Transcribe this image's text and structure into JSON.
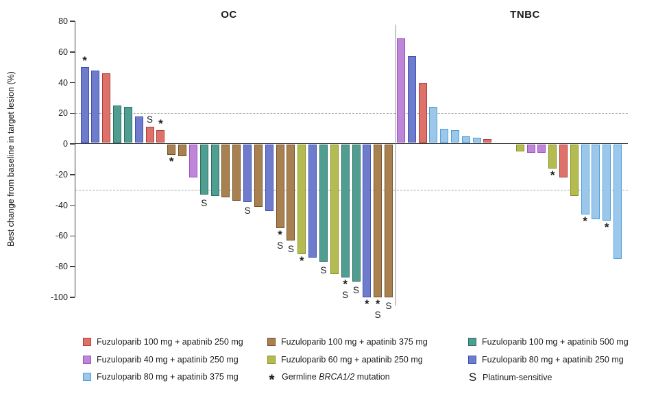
{
  "chart_data": {
    "type": "bar",
    "ylabel": "Best change from baseline in target lesion (%)",
    "ylim": [
      -100,
      80
    ],
    "yticks": [
      80,
      60,
      40,
      20,
      0,
      -20,
      -40,
      -60,
      -80,
      -100
    ],
    "reference_lines": [
      20,
      -30
    ],
    "grid": false,
    "legend_position": "bottom",
    "groups": {
      "fz100_ap250": {
        "label": "Fuzuloparib 100 mg + apatinib 250 mg",
        "fill": "#DE726B",
        "border": "#AA3F39"
      },
      "fz100_ap375": {
        "label": "Fuzuloparib 100 mg + apatinib 375 mg",
        "fill": "#A9804F",
        "border": "#6F5026"
      },
      "fz100_ap500": {
        "label": "Fuzuloparib 100 mg + apatinib 500 mg",
        "fill": "#4F9E91",
        "border": "#2B7165"
      },
      "fz40_ap250": {
        "label": "Fuzuloparib 40 mg + apatinib 250 mg",
        "fill": "#BE85D8",
        "border": "#9852BD"
      },
      "fz60_ap250": {
        "label": "Fuzuloparib 60 mg + apatinib 250 mg",
        "fill": "#B4BB51",
        "border": "#899120"
      },
      "fz80_ap250": {
        "label": "Fuzuloparib 80 mg + apatinib 250 mg",
        "fill": "#6F7CCB",
        "border": "#3C50B9"
      },
      "fz80_ap375": {
        "label": "Fuzuloparib 80 mg + apatinib 375 mg",
        "fill": "#9BC7EB",
        "border": "#4C9EDA"
      }
    },
    "markers": {
      "brca": {
        "symbol": "*"
      },
      "platinum": {
        "symbol": "S"
      }
    },
    "panels": [
      {
        "title": "OC",
        "bars": [
          {
            "v": 50,
            "g": "fz80_ap250",
            "m": [
              "brca"
            ]
          },
          {
            "v": 48,
            "g": "fz80_ap250"
          },
          {
            "v": 46,
            "g": "fz100_ap250"
          },
          {
            "v": 25,
            "g": "fz100_ap500"
          },
          {
            "v": 24,
            "g": "fz100_ap500"
          },
          {
            "v": 18,
            "g": "fz80_ap250"
          },
          {
            "v": 11,
            "g": "fz100_ap250",
            "m": [
              "platinum"
            ]
          },
          {
            "v": 9,
            "g": "fz100_ap250",
            "m": [
              "brca"
            ]
          },
          {
            "v": -7,
            "g": "fz100_ap375",
            "m": [
              "brca"
            ]
          },
          {
            "v": -8,
            "g": "fz100_ap375"
          },
          {
            "v": -22,
            "g": "fz40_ap250"
          },
          {
            "v": -33,
            "g": "fz100_ap500",
            "m": [
              "platinum"
            ]
          },
          {
            "v": -34,
            "g": "fz100_ap500"
          },
          {
            "v": -35,
            "g": "fz100_ap375"
          },
          {
            "v": -37,
            "g": "fz100_ap375"
          },
          {
            "v": -38,
            "g": "fz80_ap250",
            "m": [
              "platinum"
            ]
          },
          {
            "v": -41,
            "g": "fz100_ap375"
          },
          {
            "v": -44,
            "g": "fz80_ap250"
          },
          {
            "v": -55,
            "g": "fz100_ap375",
            "m": [
              "brca",
              "platinum"
            ]
          },
          {
            "v": -63,
            "g": "fz100_ap375",
            "m": [
              "platinum"
            ]
          },
          {
            "v": -72,
            "g": "fz60_ap250",
            "m": [
              "brca"
            ]
          },
          {
            "v": -74,
            "g": "fz80_ap250"
          },
          {
            "v": -77,
            "g": "fz100_ap500",
            "m": [
              "platinum"
            ]
          },
          {
            "v": -85,
            "g": "fz60_ap250"
          },
          {
            "v": -87,
            "g": "fz100_ap500",
            "m": [
              "brca",
              "platinum"
            ]
          },
          {
            "v": -90,
            "g": "fz100_ap500",
            "m": [
              "platinum"
            ]
          },
          {
            "v": -100,
            "g": "fz80_ap250",
            "m": [
              "brca"
            ]
          },
          {
            "v": -100,
            "g": "fz100_ap375",
            "m": [
              "brca",
              "platinum"
            ]
          },
          {
            "v": -100,
            "g": "fz100_ap375",
            "m": [
              "platinum"
            ]
          }
        ]
      },
      {
        "title": "TNBC",
        "bars": [
          {
            "v": 69,
            "g": "fz40_ap250"
          },
          {
            "v": 57,
            "g": "fz80_ap250"
          },
          {
            "v": 40,
            "g": "fz100_ap250"
          },
          {
            "v": 24,
            "g": "fz80_ap375"
          },
          {
            "v": 10,
            "g": "fz80_ap375"
          },
          {
            "v": 9,
            "g": "fz80_ap375"
          },
          {
            "v": 5,
            "g": "fz80_ap375"
          },
          {
            "v": 4,
            "g": "fz80_ap375"
          },
          {
            "v": 3,
            "g": "fz100_ap250"
          },
          {
            "v": 0,
            "g": null
          },
          {
            "v": 0,
            "g": null
          },
          {
            "v": -5,
            "g": "fz60_ap250"
          },
          {
            "v": -6,
            "g": "fz40_ap250"
          },
          {
            "v": -6,
            "g": "fz40_ap250"
          },
          {
            "v": -16,
            "g": "fz60_ap250",
            "m": [
              "brca"
            ]
          },
          {
            "v": -22,
            "g": "fz100_ap250"
          },
          {
            "v": -34,
            "g": "fz60_ap250"
          },
          {
            "v": -46,
            "g": "fz80_ap375",
            "m": [
              "brca"
            ]
          },
          {
            "v": -49,
            "g": "fz80_ap375"
          },
          {
            "v": -50,
            "g": "fz80_ap375",
            "m": [
              "brca"
            ]
          },
          {
            "v": -75,
            "g": "fz80_ap375"
          }
        ]
      }
    ]
  },
  "legend": {
    "entries": [
      {
        "kind": "group",
        "ref": "fz100_ap250"
      },
      {
        "kind": "group",
        "ref": "fz100_ap375"
      },
      {
        "kind": "group",
        "ref": "fz100_ap500"
      },
      {
        "kind": "group",
        "ref": "fz40_ap250"
      },
      {
        "kind": "group",
        "ref": "fz60_ap250"
      },
      {
        "kind": "group",
        "ref": "fz80_ap250"
      },
      {
        "kind": "group",
        "ref": "fz80_ap375"
      },
      {
        "kind": "marker",
        "ref": "brca",
        "prefix": "Germline ",
        "italic": "BRCA1/2",
        "suffix": " mutation"
      },
      {
        "kind": "marker",
        "ref": "platinum",
        "label": "Platinum-sensitive"
      }
    ]
  }
}
